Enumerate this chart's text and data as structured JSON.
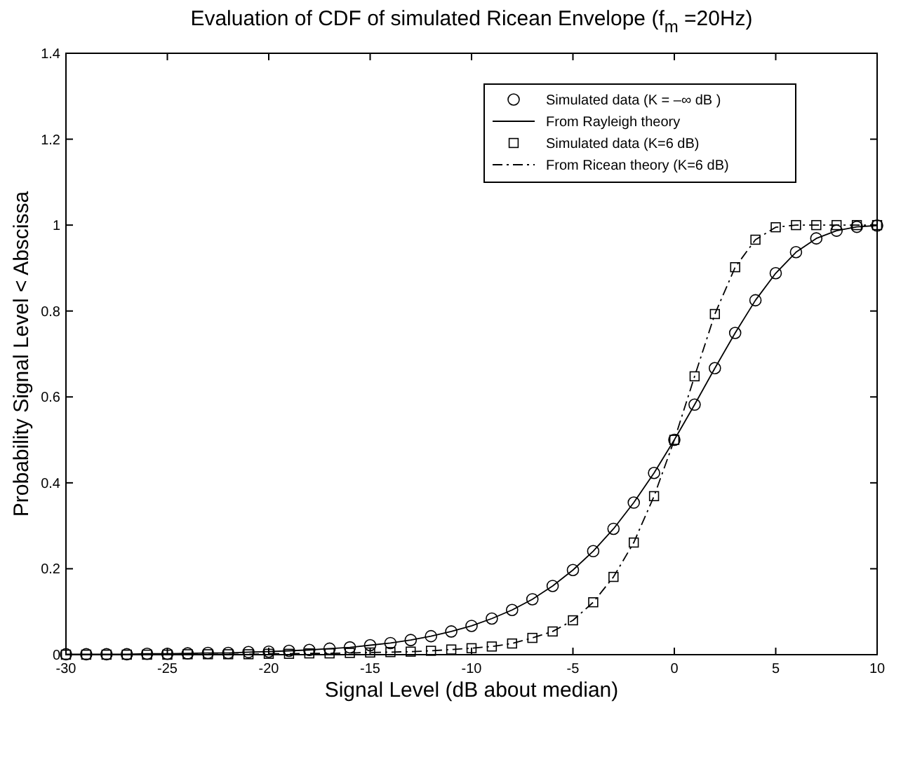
{
  "chart_data": {
    "type": "line",
    "title": "Evaluation of CDF of simulated Ricean Envelope (f$_{m}$ =20Hz)",
    "xlabel": "Signal Level (dB about median)",
    "ylabel": "Probability Signal Level < Abscissa",
    "x": [
      -30,
      -29,
      -28,
      -27,
      -26,
      -25,
      -24,
      -23,
      -22,
      -21,
      -20,
      -19,
      -18,
      -17,
      -16,
      -15,
      -14,
      -13,
      -12,
      -11,
      -10,
      -9,
      -8,
      -7,
      -6,
      -5,
      -4,
      -3,
      -2,
      -1,
      0,
      1,
      2,
      3,
      4,
      5,
      6,
      7,
      8,
      9,
      10
    ],
    "series": [
      {
        "name": "Simulated data (K = –∞ dB )",
        "type": "scatter",
        "marker": "circle",
        "color": "#000000",
        "values": [
          0.001,
          0.001,
          0.001,
          0.001,
          0.002,
          0.002,
          0.003,
          0.004,
          0.004,
          0.006,
          0.007,
          0.009,
          0.011,
          0.014,
          0.017,
          0.022,
          0.027,
          0.034,
          0.043,
          0.054,
          0.067,
          0.084,
          0.104,
          0.129,
          0.16,
          0.197,
          0.241,
          0.293,
          0.354,
          0.423,
          0.5,
          0.582,
          0.667,
          0.749,
          0.825,
          0.888,
          0.937,
          0.969,
          0.987,
          0.996,
          0.999
        ]
      },
      {
        "name": "From Rayleigh theory",
        "type": "line",
        "line_style": "solid",
        "marker": "none",
        "color": "#000000",
        "values": [
          0.001,
          0.001,
          0.001,
          0.001,
          0.002,
          0.002,
          0.003,
          0.004,
          0.004,
          0.006,
          0.007,
          0.009,
          0.011,
          0.014,
          0.017,
          0.022,
          0.027,
          0.034,
          0.043,
          0.054,
          0.067,
          0.084,
          0.104,
          0.129,
          0.16,
          0.197,
          0.241,
          0.293,
          0.354,
          0.423,
          0.5,
          0.582,
          0.667,
          0.749,
          0.825,
          0.888,
          0.937,
          0.969,
          0.987,
          0.996,
          0.999
        ]
      },
      {
        "name": "Simulated data (K=6 dB)",
        "type": "scatter",
        "marker": "square",
        "color": "#000000",
        "values": [
          0,
          0,
          0,
          0,
          0,
          0,
          0.001,
          0.001,
          0.001,
          0.001,
          0.002,
          0.002,
          0.003,
          0.003,
          0.004,
          0.005,
          0.006,
          0.007,
          0.009,
          0.012,
          0.015,
          0.019,
          0.026,
          0.039,
          0.054,
          0.08,
          0.122,
          0.181,
          0.261,
          0.369,
          0.5,
          0.648,
          0.793,
          0.902,
          0.966,
          0.995,
          1,
          1,
          1,
          1,
          1
        ]
      },
      {
        "name": "From Ricean theory (K=6 dB)",
        "type": "line",
        "line_style": "dashed",
        "marker": "none",
        "color": "#000000",
        "values": [
          0,
          0,
          0,
          0,
          0,
          0,
          0.001,
          0.001,
          0.001,
          0.001,
          0.002,
          0.002,
          0.003,
          0.003,
          0.004,
          0.005,
          0.006,
          0.007,
          0.009,
          0.012,
          0.015,
          0.019,
          0.026,
          0.039,
          0.054,
          0.08,
          0.122,
          0.181,
          0.261,
          0.369,
          0.5,
          0.648,
          0.793,
          0.902,
          0.966,
          0.995,
          1,
          1,
          1,
          1,
          1
        ]
      }
    ],
    "xlim": [
      -30,
      10
    ],
    "xticks": [
      -30,
      -25,
      -20,
      -15,
      -10,
      -5,
      0,
      5,
      10
    ],
    "ylim": [
      0,
      1.4
    ],
    "yticks": [
      0,
      0.2,
      0.4,
      0.6,
      0.8,
      1,
      1.2,
      1.4
    ],
    "grid": false,
    "legend": "top right"
  }
}
